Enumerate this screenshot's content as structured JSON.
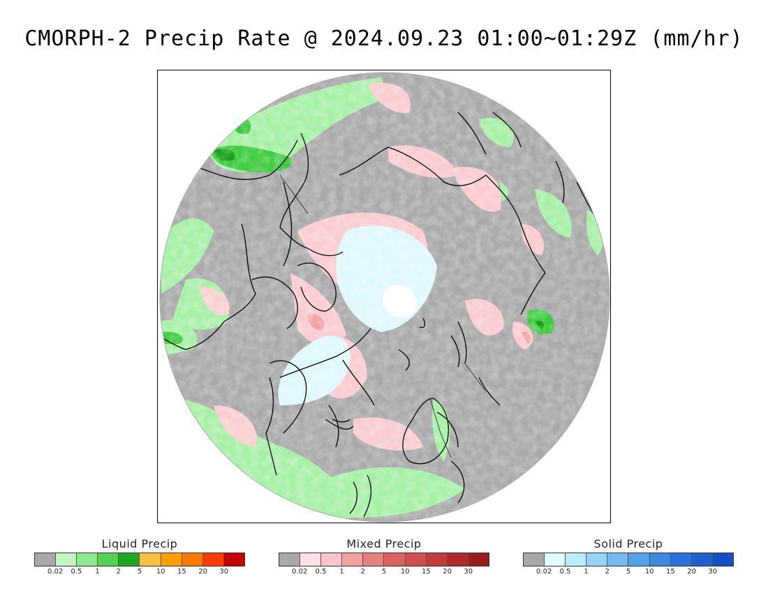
{
  "title": "CMORPH-2 Precip Rate @ 2024.09.23 01:00~01:29Z (mm/hr)",
  "map": {
    "projection": "polar-stereographic-north",
    "background_color": "#a9a9a9"
  },
  "legends": [
    {
      "title": "Liquid Precip",
      "colors": [
        "#a9a9a9",
        "#c3f5c3",
        "#8ee88e",
        "#52d452",
        "#1fa81f",
        "#ffc040",
        "#ffa000",
        "#ff7800",
        "#ff3c00",
        "#c80000"
      ],
      "ticks": [
        "0.02",
        "0.5",
        "1",
        "2",
        "5",
        "10",
        "15",
        "20",
        "30"
      ]
    },
    {
      "title": "Mixed Precip",
      "colors": [
        "#a9a9a9",
        "#ffe0e4",
        "#ffc4c8",
        "#f2a0a4",
        "#e88080",
        "#dc6262",
        "#d04e4e",
        "#c23c3c",
        "#b02a2a",
        "#9a1c1c"
      ],
      "ticks": [
        "0.02",
        "0.5",
        "1",
        "2",
        "5",
        "10",
        "15",
        "20",
        "30"
      ]
    },
    {
      "title": "Solid Precip",
      "colors": [
        "#a9a9a9",
        "#e0fcff",
        "#b8eefa",
        "#94d4f8",
        "#74baf0",
        "#54a2ea",
        "#3c8ae4",
        "#2a72dc",
        "#1e60d0",
        "#1450c4"
      ],
      "ticks": [
        "0.02",
        "0.5",
        "1",
        "2",
        "5",
        "10",
        "15",
        "20",
        "30"
      ]
    }
  ]
}
